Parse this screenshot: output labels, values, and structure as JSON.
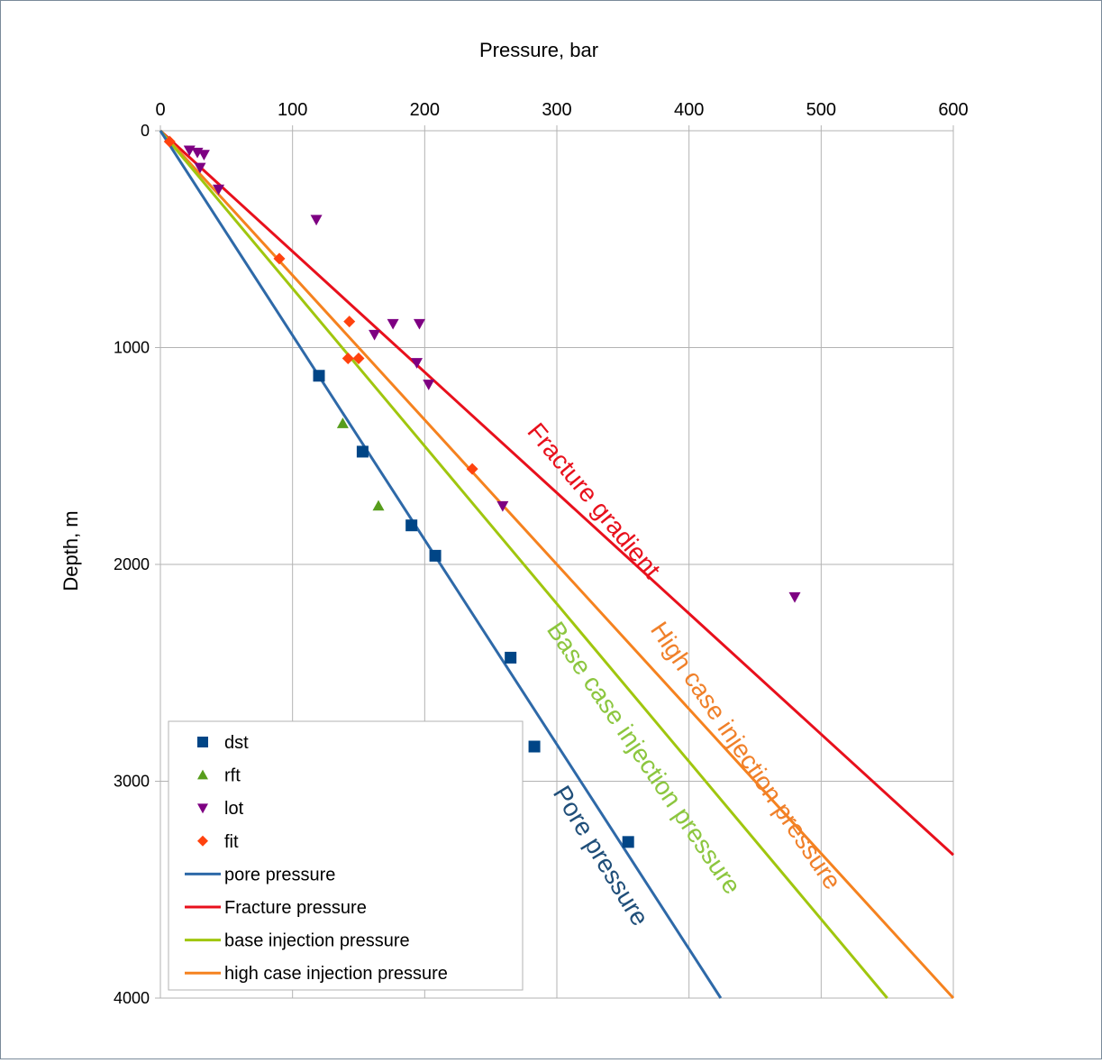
{
  "chart_data": {
    "type": "scatter",
    "title": "",
    "xlabel": "Pressure, bar",
    "ylabel": "Depth, m",
    "xlim": [
      0,
      600
    ],
    "ylim": [
      0,
      4000
    ],
    "y_inverted": true,
    "x_axis_position": "top",
    "x_ticks": [
      "0",
      "100",
      "200",
      "300",
      "400",
      "500",
      "600"
    ],
    "y_ticks": [
      "0",
      "1000",
      "2000",
      "3000",
      "4000"
    ],
    "grid": true,
    "legend_position": "bottom-left",
    "series": [
      {
        "name": "dst",
        "kind": "marker",
        "marker": "square",
        "color": "#004586",
        "points": [
          [
            120,
            1130
          ],
          [
            153,
            1480
          ],
          [
            190,
            1820
          ],
          [
            208,
            1960
          ],
          [
            265,
            2430
          ],
          [
            283,
            2840
          ],
          [
            354,
            3280
          ]
        ]
      },
      {
        "name": "rft",
        "kind": "marker",
        "marker": "triangle-up",
        "color": "#579d1c",
        "points": [
          [
            138,
            1350
          ],
          [
            165,
            1730
          ]
        ]
      },
      {
        "name": "lot",
        "kind": "marker",
        "marker": "triangle-down",
        "color": "#7e0082",
        "points": [
          [
            22,
            90
          ],
          [
            28,
            100
          ],
          [
            33,
            110
          ],
          [
            30,
            170
          ],
          [
            44,
            270
          ],
          [
            118,
            410
          ],
          [
            162,
            940
          ],
          [
            176,
            890
          ],
          [
            196,
            890
          ],
          [
            194,
            1070
          ],
          [
            203,
            1170
          ],
          [
            259,
            1730
          ],
          [
            480,
            2150
          ]
        ]
      },
      {
        "name": "fit",
        "kind": "marker",
        "marker": "diamond",
        "color": "#ff420e",
        "points": [
          [
            7,
            50
          ],
          [
            90,
            590
          ],
          [
            143,
            880
          ],
          [
            142,
            1050
          ],
          [
            150,
            1050
          ],
          [
            236,
            1560
          ]
        ]
      },
      {
        "name": "pore pressure",
        "kind": "line",
        "color": "#2e69a8",
        "points": [
          [
            0,
            0
          ],
          [
            424,
            4000
          ]
        ]
      },
      {
        "name": "Fracture pressure",
        "kind": "line",
        "color": "#e8101c",
        "points": [
          [
            0,
            0
          ],
          [
            600,
            3340
          ]
        ]
      },
      {
        "name": "base injection pressure",
        "kind": "line",
        "color": "#a0c60e",
        "points": [
          [
            0,
            0
          ],
          [
            550,
            4000
          ]
        ]
      },
      {
        "name": "high case injection pressure",
        "kind": "line",
        "color": "#f5821f",
        "points": [
          [
            0,
            0
          ],
          [
            600,
            4000
          ]
        ]
      }
    ],
    "annotations": [
      {
        "text": "Fracture gradient",
        "color": "#e8101c"
      },
      {
        "text": "High case injection pressure",
        "color": "#f0802a"
      },
      {
        "text": "Base case injection pressure",
        "color": "#8cc63f"
      },
      {
        "text": "Pore pressure",
        "color": "#1f4e79"
      }
    ]
  }
}
